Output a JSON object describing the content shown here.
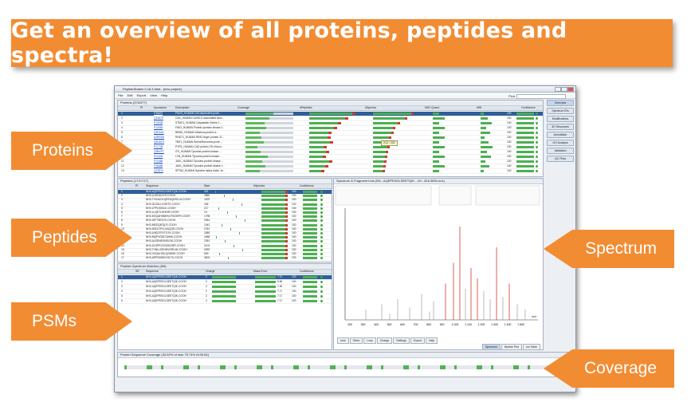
{
  "banner": {
    "text": "Get an overview of all proteins, peptides and spectra!"
  },
  "callouts": {
    "proteins": "Proteins",
    "peptides": "Peptides",
    "psms": "PSMs",
    "spectrum": "Spectrum",
    "coverage": "Coverage"
  },
  "colors": {
    "accent": "#f28c33",
    "selected_row": "#2f5f98",
    "bar_green": "#4caf50",
    "bar_red": "#d23a2a"
  },
  "app": {
    "title": "PeptideShaker 0.18.3 beta - [new project]",
    "menu": [
      "File",
      "Edit",
      "Export",
      "View",
      "Help"
    ],
    "find_label": "Find",
    "side_buttons": [
      "Overview",
      "Spectrum IDs",
      "Modifications",
      "3D Structures",
      "Annotation",
      "GO Analysis",
      "Validation",
      "QC Plots"
    ],
    "proteins_panel": {
      "title": "Proteins (376/377)",
      "headers": [
        "",
        "PI",
        "Accession",
        "Description",
        "Coverage",
        "#Peptides",
        "#Spectra",
        "MS2 Quant.",
        "MW",
        "Confidence"
      ],
      "tooltip": "212 / 232",
      "rows": [
        {
          "n": "1",
          "acc": "P35637",
          "desc": "FNXG_HUMAN Cell-dependent prote...",
          "conf": "100"
        },
        {
          "n": "2",
          "acc": "Q14875",
          "desc": "CAK_HUMAN CaVM-G associated kina...",
          "conf": "100"
        },
        {
          "n": "3",
          "acc": "P19338",
          "desc": "STMC1_HUMAN Calpastatin Serine 1...",
          "conf": "100"
        },
        {
          "n": "4",
          "acc": "P14084",
          "desc": "FAK2_HUMAN Protein-tyrosine kinase 2...",
          "conf": "100"
        },
        {
          "n": "5",
          "acc": "Q9H4A3",
          "desc": "BEMK_HUMAN Influenza protein 4...",
          "conf": "100"
        },
        {
          "n": "6",
          "acc": "A2RRD8",
          "desc": "RNDT1_HUMAN RING finger protein 21...",
          "conf": "100"
        },
        {
          "n": "7",
          "acc": "Q9UM73",
          "desc": "TBK1_HUMAN Serine/threonine-prote...",
          "conf": "100"
        },
        {
          "n": "8",
          "acc": "P27708",
          "desc": "PYR1_HUMAN CAD protein OS=Homo...",
          "conf": "100"
        },
        {
          "n": "9",
          "acc": "Q9BXP7",
          "desc": "ITK_HUMAN Tyrosine-protein kinase ...",
          "conf": "100"
        },
        {
          "n": "10",
          "acc": "P04406",
          "desc": "LYN_HUMAN Tyrosine-protein kinase...",
          "conf": "100"
        },
        {
          "n": "11",
          "acc": "P23458",
          "desc": "JAK1_HUMAN Tyrosine-protein kinase ...",
          "conf": "100"
        },
        {
          "n": "12",
          "acc": "P36888",
          "desc": "JAK1_HUMAN Tyrosine-protein kinase J...",
          "conf": "100"
        },
        {
          "n": "13",
          "acc": "Q13813",
          "desc": "SPTA2_HUMAN Spectrin alpha chain, br...",
          "conf": "100"
        }
      ]
    },
    "peptides_panel": {
      "title": "Peptides (17/17/17)",
      "headers": [
        "",
        "PI",
        "Sequence",
        "Start",
        "#Spectra",
        "Confidence"
      ],
      "rows": [
        {
          "n": "1",
          "seq": "NH3-AQEPESGLSEETQIK-COOH",
          "start": "401",
          "conf": "100"
        },
        {
          "n": "2",
          "seq": "NH3-LLEEALVLR-COOH",
          "start": "2860",
          "conf": "100"
        },
        {
          "n": "3",
          "seq": "NH3-TVGALDLQEEAQDSLLA-COOH",
          "start": "1878",
          "conf": "100"
        },
        {
          "n": "4",
          "seq": "NH3-GLSSLLCNHTK-COOH",
          "start": "336",
          "conf": "100"
        },
        {
          "n": "5",
          "seq": "NH3-LPPLKKDLK-COOH",
          "start": "217",
          "conf": "100"
        },
        {
          "n": "6",
          "seq": "NH3-LLQETLSHIGR-COOH",
          "start": "19",
          "conf": "100"
        },
        {
          "n": "7",
          "seq": "NH3-EGQAHSMEKLFGGSFR-COOH",
          "start": "1798",
          "conf": "100"
        },
        {
          "n": "8",
          "seq": "NH3-GIFTSEDTK-COOH",
          "start": "2061",
          "conf": "100"
        },
        {
          "n": "9",
          "seq": "NH3-MEDQIEQLR-COOH",
          "start": "1041",
          "conf": "100"
        },
        {
          "n": "10",
          "seq": "NH3-HSDLTPLLSAQQR-COOH",
          "start": "2787",
          "conf": "100"
        },
        {
          "n": "11",
          "seq": "NH3-LNEDTFDTGTK-COOH",
          "start": "1859",
          "conf": "100"
        },
        {
          "n": "12",
          "seq": "NH3-MQPVGDLTAIKIK-COOH",
          "start": "1658",
          "conf": "100"
        },
        {
          "n": "13",
          "seq": "NH3-ALEDNEKNSLDK-COOH",
          "start": "2351",
          "conf": "100"
        },
        {
          "n": "14",
          "seq": "NH3-SLSPPVGGDDGRR-COOH",
          "start": "2103",
          "conf": "100"
        },
        {
          "n": "15",
          "seq": "NH3-TVNLLDEHNVDRLNK-COOH",
          "start": "2993",
          "conf": "100"
        },
        {
          "n": "16",
          "seq": "NH3-VVQALSSLQGWSK-COOH",
          "start": "509",
          "conf": "100"
        },
        {
          "n": "17",
          "seq": "NH3-APPDDWDVGLTK-COOH",
          "start": "3604",
          "conf": "100"
        }
      ]
    },
    "psm_panel": {
      "title": "Peptide-Spectrum Matches (6/6)",
      "headers": [
        "",
        "SE",
        "Sequence",
        "Charge",
        "Mass Error",
        "Confidence"
      ],
      "rows": [
        {
          "n": "1",
          "seq": "NH3-AQEPESGLSEETQIK-COOH",
          "charge": "2",
          "err": "7.07",
          "conf": "100"
        },
        {
          "n": "2",
          "seq": "NH3-AQEPESGLSEETQIK-COOH",
          "charge": "2",
          "err": "5.86",
          "conf": "100"
        },
        {
          "n": "3",
          "seq": "NH3-AQEPESGLSEETQIK-COOH",
          "charge": "2",
          "err": "7.84",
          "conf": "100"
        },
        {
          "n": "4",
          "seq": "NH3-AQEPESGLSEETQIK-COOH",
          "charge": "2",
          "err": "7.17",
          "conf": "100"
        },
        {
          "n": "5",
          "seq": "NH3-AQEPESGLSEETQIK-COOH",
          "charge": "2",
          "err": "7.17",
          "conf": "100"
        },
        {
          "n": "6",
          "seq": "NH3-AQEPESGLSEETQIK-COOH",
          "charge": "2",
          "err": "7.17",
          "conf": "100"
        }
      ]
    },
    "spectrum_panel": {
      "title": "Spectrum & Fragment Ions (RA - AQEPESGLSEETQIK - 2H - 816.3834 m/z)",
      "x_ticks": [
        "200",
        "300",
        "400",
        "500",
        "600",
        "700",
        "800",
        "900",
        "1 000",
        "1 100",
        "1 200",
        "1 300",
        "1 400",
        "1 500"
      ],
      "x_unit": "m/z",
      "ion_tabs": [
        "Ions",
        "Other",
        "Loss",
        "Charge",
        "Settings",
        "Export",
        "Help"
      ],
      "view_tabs": [
        "Spectrum",
        "Bubble Plot",
        "Ion Table"
      ]
    },
    "coverage_panel": {
      "title": "Protein Sequence Coverage (34.52% of max 75.74%  #135 84)"
    }
  }
}
